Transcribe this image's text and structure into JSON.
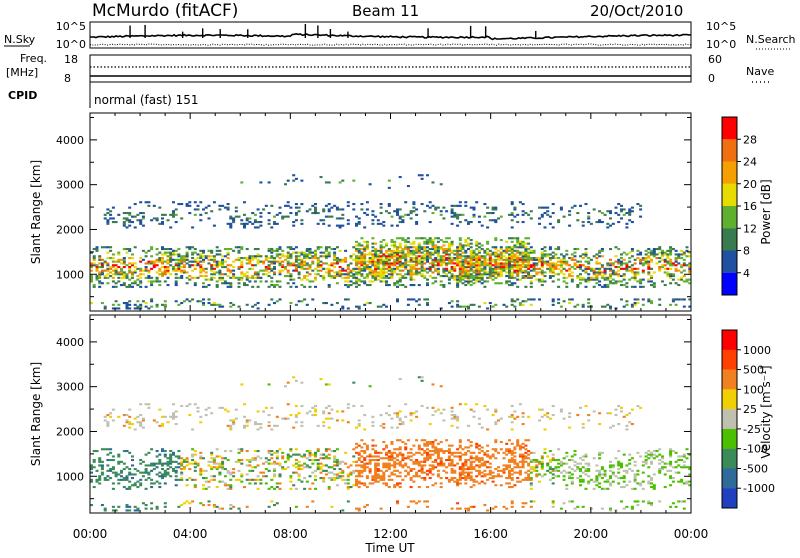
{
  "header": {
    "station": "McMurdo (fitACF)",
    "beam": "Beam 11",
    "date": "20/Oct/2010"
  },
  "top_panels": {
    "nsky_label": "N.Sky",
    "nsky_ticks": [
      "10^5",
      "10^0"
    ],
    "nsearch_label": "N.Search",
    "nsearch_ticks": [
      "10^5",
      "10^0"
    ],
    "freq_label": "Freq.",
    "freq_unit": "[MHz]",
    "freq_ticks": [
      "18",
      "8"
    ],
    "nave_label": "Nave",
    "nave_ticks": [
      "60",
      "0"
    ],
    "cpid_label": "CPID",
    "cpid_value": "normal (fast) 151"
  },
  "colors": {
    "power_scale": [
      "#0000ff",
      "#2050a0",
      "#3a7a50",
      "#60b030",
      "#e6dc00",
      "#f5a000",
      "#f07010",
      "#ff0000"
    ],
    "velocity_scale": [
      "#2040c0",
      "#2e6a9a",
      "#3a8a5a",
      "#4ac000",
      "#c0c0b0",
      "#f0d000",
      "#f08020",
      "#ff4000",
      "#ff0000"
    ]
  },
  "chart_data": [
    {
      "type": "heatmap",
      "panel": "power",
      "ylabel": "Slant Range [km]",
      "x_ticks": [
        "00:00",
        "04:00",
        "08:00",
        "12:00",
        "16:00",
        "20:00",
        "00:00"
      ],
      "xlim_hours": [
        0,
        24
      ],
      "y_ticks": [
        "1000",
        "2000",
        "3000",
        "4000"
      ],
      "ylim_km": [
        180,
        4600
      ],
      "colorbar_label": "Power [dB]",
      "colorbar_ticks": [
        "4",
        "8",
        "12",
        "16",
        "20",
        "24",
        "28"
      ],
      "colorbar_range": [
        0,
        32
      ]
    },
    {
      "type": "heatmap",
      "panel": "velocity",
      "ylabel": "Slant Range [km]",
      "xlabel": "Time UT",
      "x_ticks": [
        "00:00",
        "04:00",
        "08:00",
        "12:00",
        "16:00",
        "20:00",
        "00:00"
      ],
      "xlim_hours": [
        0,
        24
      ],
      "y_ticks": [
        "1000",
        "2000",
        "3000",
        "4000"
      ],
      "ylim_km": [
        180,
        4600
      ],
      "colorbar_label": "Velocity [m s⁻¹]",
      "colorbar_ticks": [
        "1000",
        "500",
        "100",
        "25",
        "-25",
        "-100",
        "-500",
        "-1000"
      ],
      "colorbar_range": [
        -1000,
        1000
      ]
    }
  ]
}
